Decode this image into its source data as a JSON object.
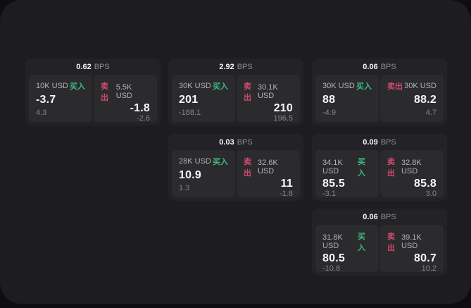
{
  "app": {
    "unit_label": "BPS",
    "buy_label": "买入",
    "sell_label": "卖出"
  },
  "colors": {
    "buy": "#3cba7c",
    "sell": "#d24a6e",
    "outer-bg": "#0e0e10",
    "panel-bg": "#1d1d1f",
    "card-bg": "#232327",
    "tile-bg": "#2b2b2e"
  },
  "cards": [
    {
      "bps": "0.62",
      "buy": {
        "amount": "10K USD",
        "price": "-3.7",
        "delta": "4.3"
      },
      "sell": {
        "amount": "5.5K USD",
        "price": "-1.8",
        "delta": "-2.6"
      }
    },
    {
      "bps": "2.92",
      "buy": {
        "amount": "30K USD",
        "price": "201",
        "delta": "-188.1"
      },
      "sell": {
        "amount": "30.1K USD",
        "price": "210",
        "delta": "196.5"
      }
    },
    {
      "bps": "0.06",
      "buy": {
        "amount": "30K USD",
        "price": "88",
        "delta": "-4.9"
      },
      "sell": {
        "amount": "30K USD",
        "price": "88.2",
        "delta": "4.7"
      }
    },
    {
      "bps": "0.03",
      "buy": {
        "amount": "28K USD",
        "price": "10.9",
        "delta": "1.3"
      },
      "sell": {
        "amount": "32.6K USD",
        "price": "11",
        "delta": "-1.8"
      }
    },
    {
      "bps": "0.09",
      "buy": {
        "amount": "34.1K USD",
        "price": "85.5",
        "delta": "-3.1"
      },
      "sell": {
        "amount": "32.8K USD",
        "price": "85.8",
        "delta": "3.0"
      }
    },
    {
      "bps": "0.06",
      "buy": {
        "amount": "31.8K USD",
        "price": "80.5",
        "delta": "-10.8"
      },
      "sell": {
        "amount": "39.1K USD",
        "price": "80.7",
        "delta": "10.2"
      }
    }
  ]
}
